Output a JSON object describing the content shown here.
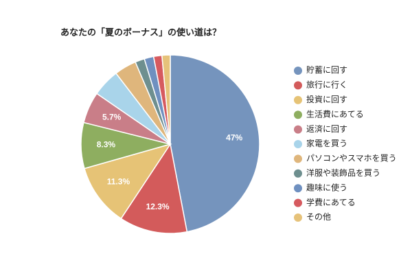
{
  "chart_data": {
    "type": "pie",
    "title": "あなたの「夏のボーナス」の使い道は？",
    "categories": [
      "貯蓄に回す",
      "旅行に行く",
      "投資に回す",
      "生活費にあてる",
      "返済に回す",
      "家電を買う",
      "パソコンやスマホを買う",
      "洋服や装飾品を買う",
      "趣味に使う",
      "学費にあてる",
      "その他"
    ],
    "values": [
      47,
      12.3,
      11.3,
      8.3,
      5.7,
      5,
      4,
      1.7,
      1.7,
      1.5,
      1.5
    ],
    "value_labels": [
      "47%",
      "12.3%",
      "11.3%",
      "8.3%",
      "5.7%",
      null,
      null,
      null,
      null,
      null,
      null
    ],
    "colors": [
      "#7594bd",
      "#d35b5b",
      "#e6c376",
      "#8eae60",
      "#c97e88",
      "#a9d4ea",
      "#dfb67c",
      "#6e8f8f",
      "#6f90c0",
      "#d65a5f",
      "#e6c27a"
    ]
  }
}
